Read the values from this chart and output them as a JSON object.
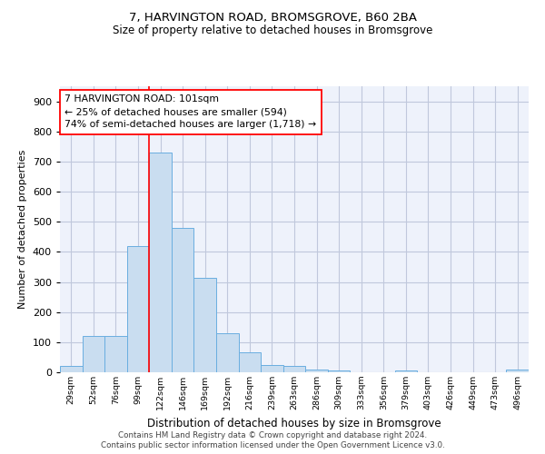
{
  "title": "7, HARVINGTON ROAD, BROMSGROVE, B60 2BA",
  "subtitle": "Size of property relative to detached houses in Bromsgrove",
  "xlabel": "Distribution of detached houses by size in Bromsgrove",
  "ylabel": "Number of detached properties",
  "categories": [
    "29sqm",
    "52sqm",
    "76sqm",
    "99sqm",
    "122sqm",
    "146sqm",
    "169sqm",
    "192sqm",
    "216sqm",
    "239sqm",
    "263sqm",
    "286sqm",
    "309sqm",
    "333sqm",
    "356sqm",
    "379sqm",
    "403sqm",
    "426sqm",
    "449sqm",
    "473sqm",
    "496sqm"
  ],
  "values": [
    20,
    120,
    120,
    420,
    730,
    480,
    315,
    130,
    65,
    25,
    20,
    10,
    5,
    0,
    0,
    5,
    0,
    0,
    0,
    0,
    8
  ],
  "bar_color": "#c9ddf0",
  "bar_edge_color": "#6aaee0",
  "ylim": [
    0,
    950
  ],
  "yticks": [
    0,
    100,
    200,
    300,
    400,
    500,
    600,
    700,
    800,
    900
  ],
  "annotation_box_text": "7 HARVINGTON ROAD: 101sqm\n← 25% of detached houses are smaller (594)\n74% of semi-detached houses are larger (1,718) →",
  "grid_color": "#c0c8dc",
  "background_color": "#eef2fb",
  "footer_line1": "Contains HM Land Registry data © Crown copyright and database right 2024.",
  "footer_line2": "Contains public sector information licensed under the Open Government Licence v3.0.",
  "red_line_bar_index": 3,
  "title_fontsize": 9.5,
  "subtitle_fontsize": 8.5
}
